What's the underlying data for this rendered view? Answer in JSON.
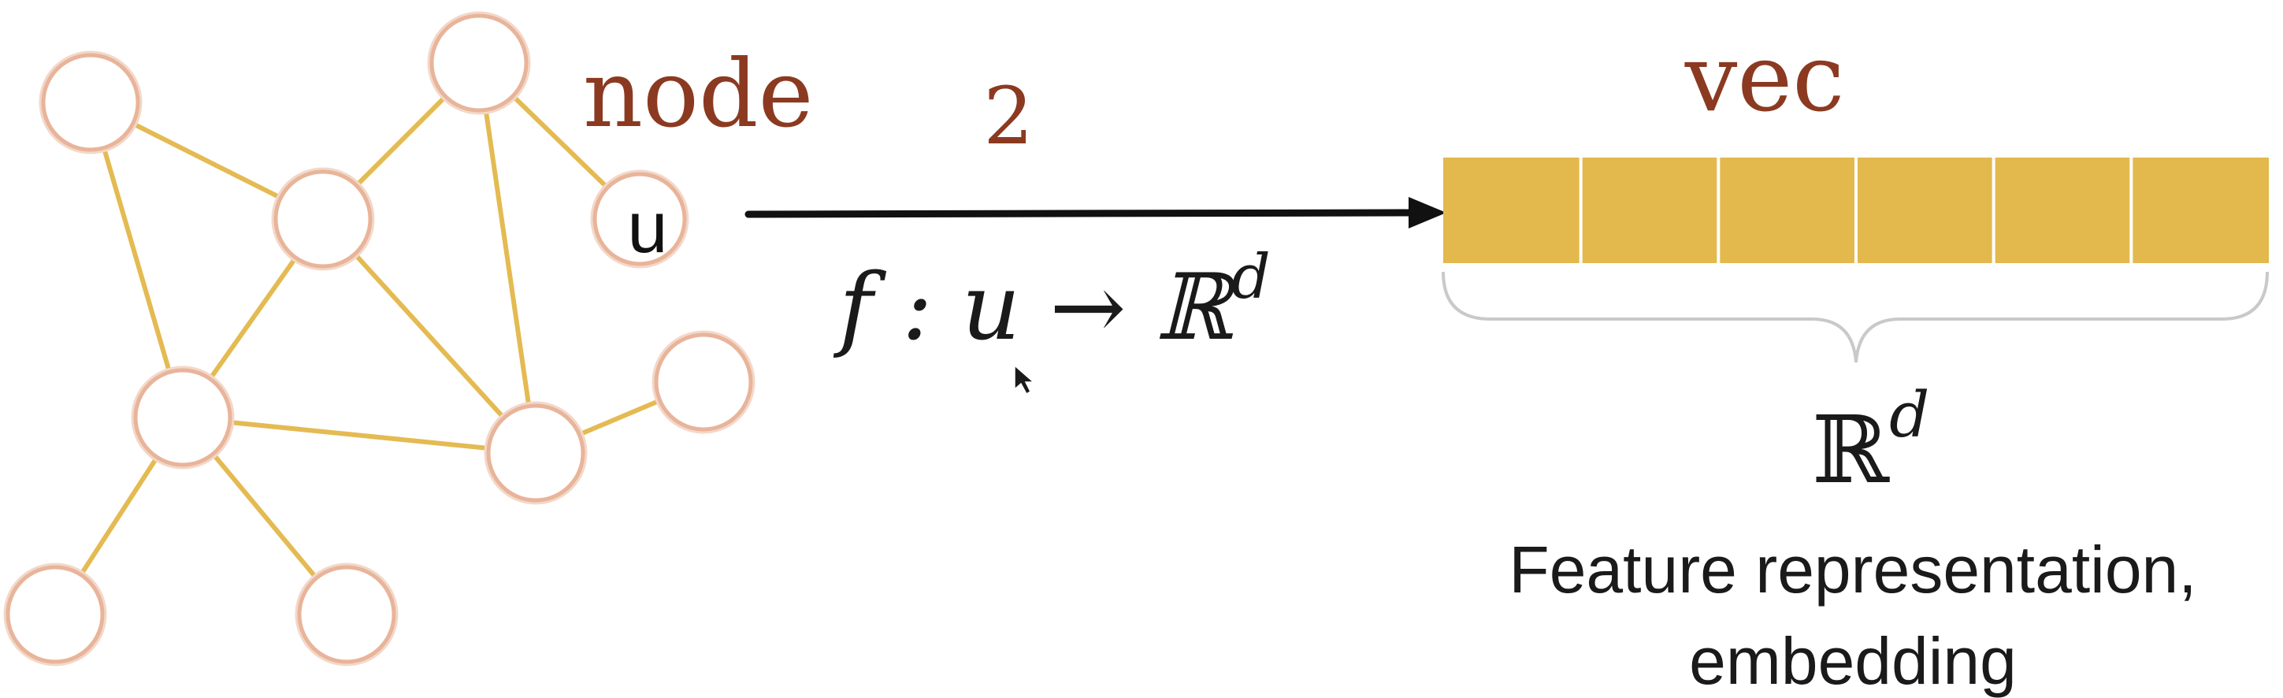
{
  "graph": {
    "label": "node",
    "highlighted_node_label": "u"
  },
  "mapping": {
    "step_number": "2",
    "function_label": "f : u → ℝ",
    "function_superscript": "d"
  },
  "embedding": {
    "label": "vec",
    "cell_count": 6,
    "space_label": "ℝ",
    "space_superscript": "d",
    "caption_line1": "Feature representation,",
    "caption_line2": "embedding"
  },
  "colors": {
    "edge": "#e4ba52",
    "node_stroke": "#e8b49a",
    "label_red": "#8b3a21",
    "vector_fill": "#e3b94e",
    "arrow": "#111111"
  }
}
